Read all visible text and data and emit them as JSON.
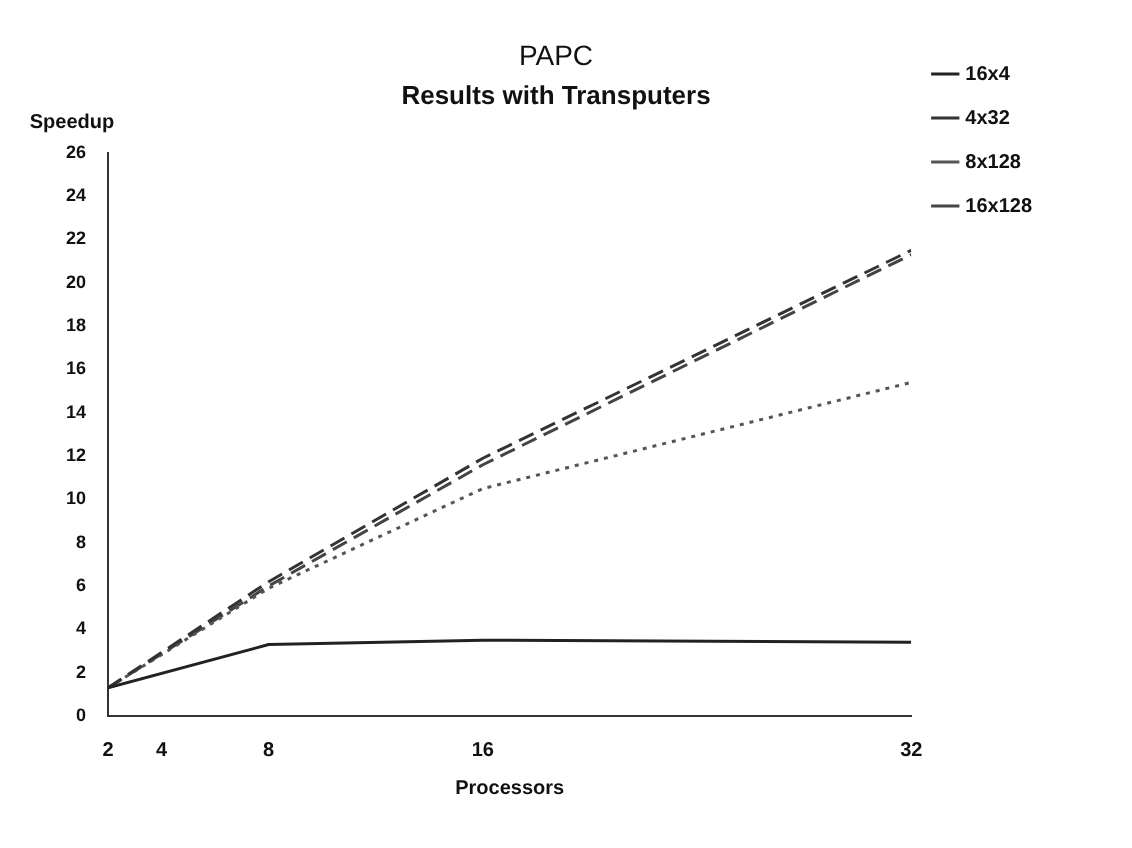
{
  "chart_data": {
    "type": "line",
    "title": "PAPC",
    "subtitle": "Results with Transputers",
    "xlabel": "Processors",
    "ylabel": "Speedup",
    "x": [
      2,
      8,
      16,
      32
    ],
    "series": [
      {
        "name": "16x4",
        "color": "#222222",
        "line_style": "solid",
        "values": [
          1.3,
          3.3,
          3.5,
          3.4
        ]
      },
      {
        "name": "4x32",
        "color": "#333333",
        "line_style": "dashed",
        "values": [
          1.3,
          6.2,
          11.9,
          21.5
        ]
      },
      {
        "name": "8x128",
        "color": "#555555",
        "line_style": "dotted",
        "values": [
          1.3,
          5.9,
          10.5,
          15.4
        ]
      },
      {
        "name": "16x128",
        "color": "#444444",
        "line_style": "dashed",
        "values": [
          1.3,
          6.0,
          11.6,
          21.3
        ]
      }
    ],
    "xlim": [
      2,
      32
    ],
    "xticks": [
      2,
      4,
      8,
      16,
      32
    ],
    "ylim": [
      0,
      26
    ],
    "yticks": [
      0,
      2,
      4,
      6,
      8,
      10,
      12,
      14,
      16,
      18,
      20,
      22,
      24,
      26
    ],
    "grid": false,
    "legend": "right",
    "marker": "none"
  }
}
